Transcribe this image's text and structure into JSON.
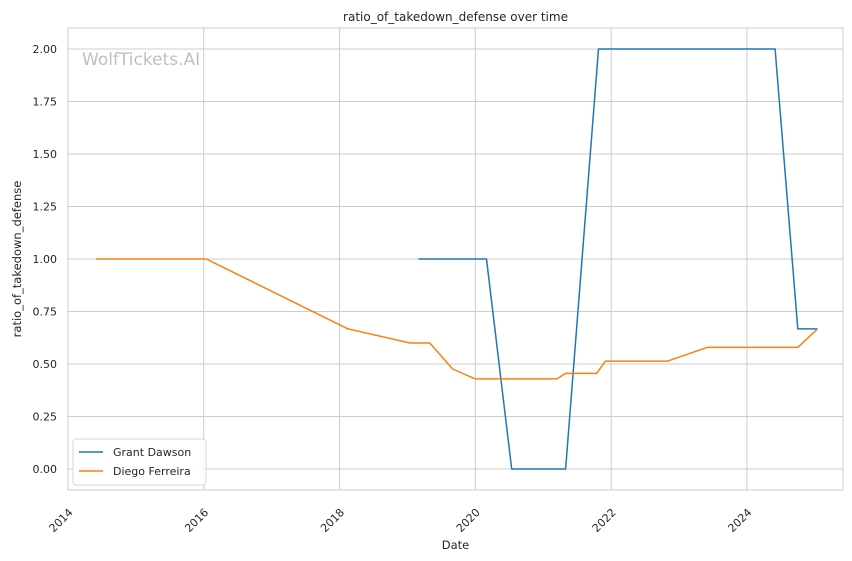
{
  "chart_data": {
    "type": "line",
    "title": "ratio_of_takedown_defense over time",
    "xlabel": "Date",
    "ylabel": "ratio_of_takedown_defense",
    "watermark": "WolfTickets.AI",
    "xlim": [
      "2014-01-01",
      "2025-06-01"
    ],
    "ylim": [
      -0.1,
      2.1
    ],
    "x_ticks": [
      "2014",
      "2016",
      "2018",
      "2020",
      "2022",
      "2024"
    ],
    "y_ticks": [
      "0.00",
      "0.25",
      "0.50",
      "0.75",
      "1.00",
      "1.25",
      "1.50",
      "1.75",
      "2.00"
    ],
    "grid": true,
    "legend": "lower-left",
    "series": [
      {
        "name": "Grant Dawson",
        "color": "#1f77b4",
        "points": [
          [
            "2019-03-01",
            1.0
          ],
          [
            "2020-03-01",
            1.0
          ],
          [
            "2020-07-15",
            0.0
          ],
          [
            "2021-05-01",
            0.0
          ],
          [
            "2021-10-25",
            2.0
          ],
          [
            "2024-06-01",
            2.0
          ],
          [
            "2024-10-01",
            0.667
          ],
          [
            "2025-01-15",
            0.667
          ]
        ]
      },
      {
        "name": "Diego Ferreira",
        "color": "#ff7f0e",
        "points": [
          [
            "2014-06-01",
            1.0
          ],
          [
            "2016-01-15",
            1.0
          ],
          [
            "2018-02-15",
            0.667
          ],
          [
            "2019-01-15",
            0.6
          ],
          [
            "2019-05-01",
            0.6
          ],
          [
            "2019-09-01",
            0.476
          ],
          [
            "2020-01-01",
            0.429
          ],
          [
            "2021-03-15",
            0.429
          ],
          [
            "2021-05-01",
            0.455
          ],
          [
            "2021-10-15",
            0.455
          ],
          [
            "2021-12-01",
            0.514
          ],
          [
            "2022-11-01",
            0.514
          ],
          [
            "2023-06-01",
            0.579
          ],
          [
            "2024-10-01",
            0.579
          ],
          [
            "2025-01-15",
            0.667
          ]
        ]
      }
    ]
  }
}
